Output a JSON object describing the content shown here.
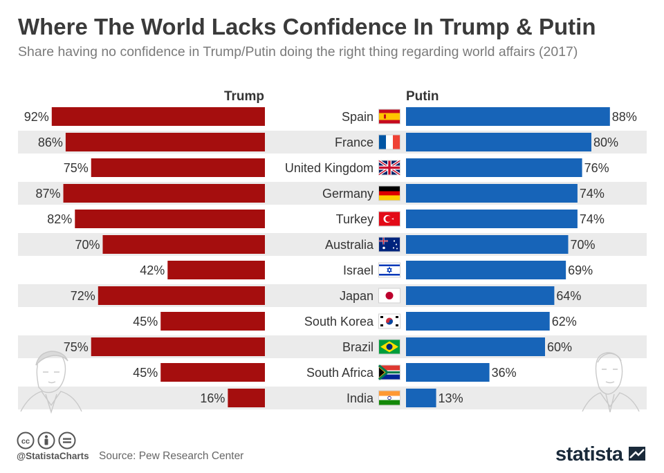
{
  "header": {
    "title": "Where The World Lacks Confidence In Trump & Putin",
    "subtitle": "Share having no confidence in Trump/Putin doing the right thing regarding world affairs (2017)"
  },
  "footer": {
    "handle": "@StatistaCharts",
    "source": "Source: Pew Research Center",
    "logo": "statista"
  },
  "colors": {
    "trump": "#a50e0e",
    "putin": "#1764b8",
    "stripe": "#ebebeb",
    "text": "#333333"
  },
  "chart_data": {
    "type": "bar",
    "orientation": "horizontal-diverging",
    "unit": "%",
    "categories": [
      "Spain",
      "France",
      "United Kingdom",
      "Germany",
      "Turkey",
      "Australia",
      "Israel",
      "Japan",
      "South Korea",
      "Brazil",
      "South Africa",
      "India"
    ],
    "series": [
      {
        "name": "Trump",
        "values": [
          92,
          86,
          75,
          87,
          82,
          70,
          42,
          72,
          45,
          75,
          45,
          16
        ]
      },
      {
        "name": "Putin",
        "values": [
          88,
          80,
          76,
          74,
          74,
          70,
          69,
          64,
          62,
          60,
          36,
          13
        ]
      }
    ],
    "flags": [
      "flag-spain-icon",
      "flag-france-icon",
      "flag-uk-icon",
      "flag-germany-icon",
      "flag-turkey-icon",
      "flag-australia-icon",
      "flag-israel-icon",
      "flag-japan-icon",
      "flag-south-korea-icon",
      "flag-brazil-icon",
      "flag-south-africa-icon",
      "flag-india-icon"
    ],
    "grid": false,
    "legend": "column headers"
  }
}
